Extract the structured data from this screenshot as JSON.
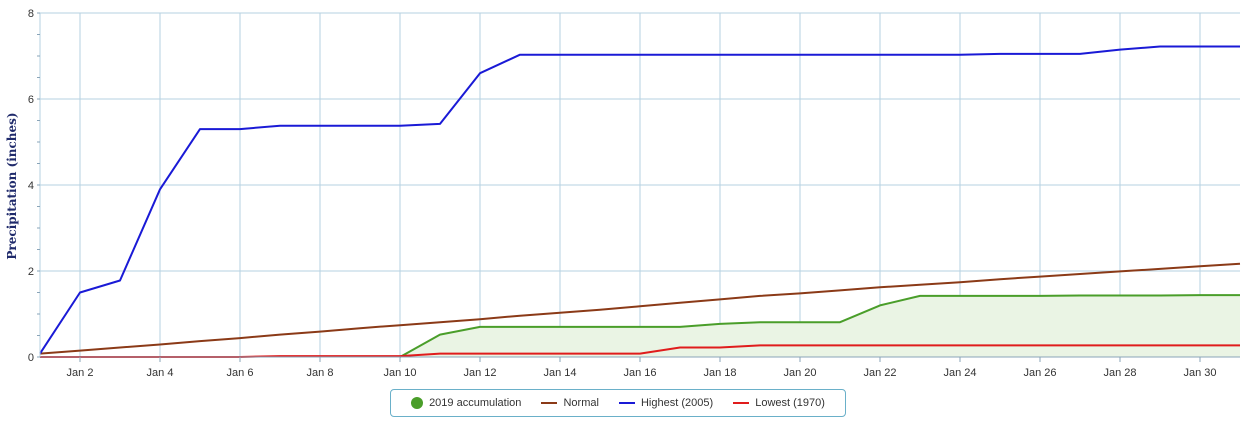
{
  "chart_data": {
    "type": "line",
    "title": "",
    "xlabel": "",
    "ylabel": "Precipitation (inches)",
    "x": [
      1,
      2,
      3,
      4,
      5,
      6,
      7,
      8,
      9,
      10,
      11,
      12,
      13,
      14,
      15,
      16,
      17,
      18,
      19,
      20,
      21,
      22,
      23,
      24,
      25,
      26,
      27,
      28,
      29,
      30,
      31
    ],
    "x_tick_labels": [
      "Jan 2",
      "Jan 4",
      "Jan 6",
      "Jan 8",
      "Jan 10",
      "Jan 12",
      "Jan 14",
      "Jan 16",
      "Jan 18",
      "Jan 20",
      "Jan 22",
      "Jan 24",
      "Jan 26",
      "Jan 28",
      "Jan 30"
    ],
    "x_tick_values": [
      2,
      4,
      6,
      8,
      10,
      12,
      14,
      16,
      18,
      20,
      22,
      24,
      26,
      28,
      30
    ],
    "y_ticks": [
      0,
      2,
      4,
      6,
      8
    ],
    "xlim": [
      1,
      31
    ],
    "ylim": [
      0,
      8
    ],
    "grid": true,
    "legend_position": "bottom-center",
    "series": [
      {
        "name": "2019 accumulation",
        "style": "area",
        "color": "#4a9e2a",
        "x": [
          10,
          11,
          12,
          13,
          14,
          15,
          16,
          17,
          18,
          19,
          20,
          21,
          22,
          23,
          24,
          25,
          26,
          27,
          28,
          29,
          30,
          31
        ],
        "values": [
          0,
          0.52,
          0.7,
          0.7,
          0.7,
          0.7,
          0.7,
          0.7,
          0.77,
          0.81,
          0.81,
          0.81,
          1.2,
          1.42,
          1.42,
          1.42,
          1.42,
          1.43,
          1.43,
          1.43,
          1.44,
          1.44
        ]
      },
      {
        "name": "Normal",
        "style": "line",
        "color": "#8b3a17",
        "values": [
          0.08,
          0.15,
          0.22,
          0.29,
          0.37,
          0.44,
          0.52,
          0.59,
          0.67,
          0.74,
          0.81,
          0.88,
          0.96,
          1.03,
          1.1,
          1.18,
          1.26,
          1.34,
          1.42,
          1.48,
          1.55,
          1.62,
          1.68,
          1.74,
          1.81,
          1.87,
          1.93,
          1.99,
          2.05,
          2.11,
          2.17
        ]
      },
      {
        "name": "Highest (2005)",
        "style": "line",
        "color": "#1a1ad6",
        "values": [
          0.08,
          1.5,
          1.78,
          3.9,
          5.3,
          5.3,
          5.38,
          5.38,
          5.38,
          5.38,
          5.42,
          6.6,
          7.03,
          7.03,
          7.03,
          7.03,
          7.03,
          7.03,
          7.03,
          7.03,
          7.03,
          7.03,
          7.03,
          7.03,
          7.05,
          7.05,
          7.05,
          7.15,
          7.22,
          7.22,
          7.22
        ]
      },
      {
        "name": "Lowest (1970)",
        "style": "line",
        "color": "#e01c1c",
        "values": [
          0,
          0,
          0,
          0,
          0,
          0,
          0.02,
          0.02,
          0.02,
          0.02,
          0.08,
          0.08,
          0.08,
          0.08,
          0.08,
          0.08,
          0.22,
          0.22,
          0.27,
          0.27,
          0.27,
          0.27,
          0.27,
          0.27,
          0.27,
          0.27,
          0.27,
          0.27,
          0.27,
          0.27,
          0.27
        ]
      }
    ]
  },
  "colors": {
    "grid": "#b6d2e2",
    "axis": "#8aa4b8",
    "fill_2019": "#eaf4e4"
  }
}
